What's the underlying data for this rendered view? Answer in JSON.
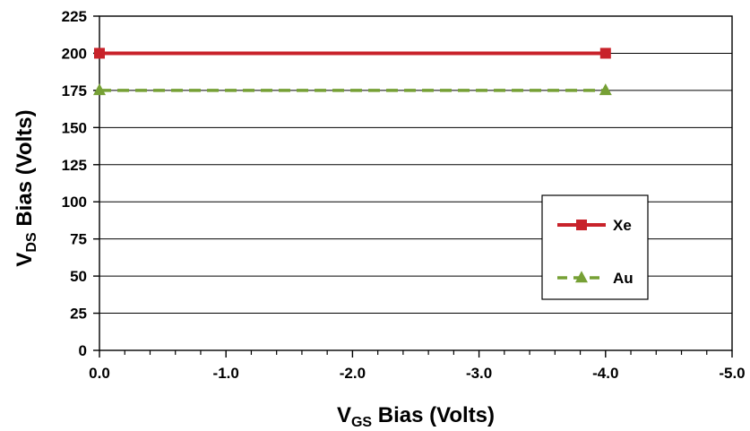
{
  "chart_data": {
    "type": "line",
    "xlabel": {
      "main": "V",
      "sub": "GS",
      "rest": " Bias (Volts)"
    },
    "ylabel": {
      "main": "V",
      "sub": "DS",
      "rest": " Bias (Volts)"
    },
    "xlim": [
      0,
      -5
    ],
    "ylim": [
      0,
      225
    ],
    "x_ticks": [
      0,
      -1,
      -2,
      -3,
      -4,
      -5
    ],
    "x_tick_labels": [
      "0.0",
      "-1.0",
      "-2.0",
      "-3.0",
      "-4.0",
      "-5.0"
    ],
    "y_ticks": [
      0,
      25,
      50,
      75,
      100,
      125,
      150,
      175,
      200,
      225
    ],
    "y_tick_labels": [
      "0",
      "25",
      "50",
      "75",
      "100",
      "125",
      "150",
      "175",
      "200",
      "225"
    ],
    "x_minor_step": 0.2,
    "grid": "horizontal",
    "legend_position": "right",
    "series": [
      {
        "name": "Xe",
        "x": [
          0,
          -4
        ],
        "y": [
          200,
          200
        ],
        "color": "#c8222a",
        "marker": "square",
        "dash": "solid"
      },
      {
        "name": "Au",
        "x": [
          0,
          -4
        ],
        "y": [
          175,
          175
        ],
        "color": "#76a035",
        "marker": "triangle",
        "dash": "dashed"
      }
    ]
  }
}
